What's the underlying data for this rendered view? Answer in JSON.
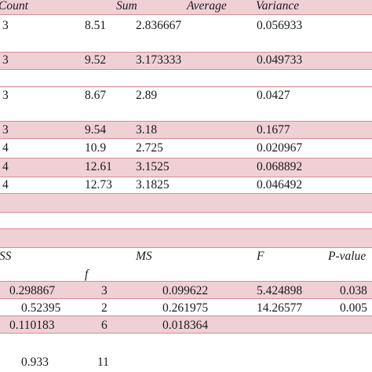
{
  "summary": {
    "headers": {
      "count": "Count",
      "sum": "Sum",
      "average": "Average",
      "variance": "Variance"
    },
    "rows": [
      {
        "count": "3",
        "sum": "8.51",
        "average": "2.836667",
        "variance": "0.056933"
      },
      {
        "count": "3",
        "sum": "9.52",
        "average": "3.173333",
        "variance": "0.049733"
      },
      {
        "count": "3",
        "sum": "8.67",
        "average": "2.89",
        "variance": "0.0427"
      },
      {
        "count": "3",
        "sum": "9.54",
        "average": "3.18",
        "variance": "0.1677"
      },
      {
        "count": "4",
        "sum": "10.9",
        "average": "2.725",
        "variance": "0.020967"
      },
      {
        "count": "4",
        "sum": "12.61",
        "average": "3.1525",
        "variance": "0.068892"
      },
      {
        "count": "4",
        "sum": "12.73",
        "average": "3.1825",
        "variance": "0.046492"
      }
    ]
  },
  "anova": {
    "headers": {
      "ss": "SS",
      "df": "f",
      "ms": "MS",
      "f": "F",
      "p": "P-value"
    },
    "rows": [
      {
        "ss": "0.298867",
        "df": "3",
        "ms": "0.099622",
        "f": "5.424898",
        "p": "0.038"
      },
      {
        "ss": "0.52395",
        "df": "2",
        "ms": "0.261975",
        "f": "14.26577",
        "p": "0.005"
      },
      {
        "ss": "0.110183",
        "df": "6",
        "ms": "0.018364",
        "f": "",
        "p": ""
      }
    ],
    "total": {
      "ss": "0.933",
      "df": "11"
    }
  },
  "colors": {
    "band": "#efd0d5",
    "rule": "#d98a95",
    "text": "#1a1a1a"
  }
}
